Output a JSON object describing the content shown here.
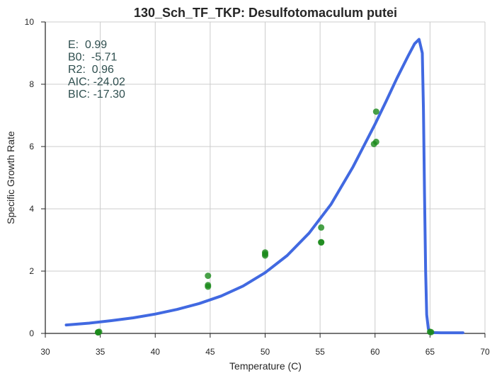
{
  "chart_data": {
    "type": "scatter",
    "title": "130_Sch_TF_TKP: Desulfotomaculum putei",
    "xlabel": "Temperature (C)",
    "ylabel": "Specific Growth Rate",
    "xlim": [
      30,
      70
    ],
    "ylim": [
      0,
      10
    ],
    "xticks": [
      "30",
      "35",
      "40",
      "45",
      "50",
      "55",
      "60",
      "65",
      "70"
    ],
    "yticks": [
      "0",
      "2",
      "4",
      "6",
      "8",
      "10"
    ],
    "grid": true,
    "annotations": [
      "E:  0.99",
      "B0:  -5.71",
      "R2:  0.96",
      "AIC: -24.02",
      "BIC: -17.30"
    ],
    "series": [
      {
        "kind": "scatter",
        "color": "#1a8a1a",
        "points": [
          [
            34.8,
            0.04
          ],
          [
            34.9,
            0.05
          ],
          [
            34.8,
            0.03
          ],
          [
            44.8,
            1.85
          ],
          [
            44.8,
            1.55
          ],
          [
            44.8,
            1.5
          ],
          [
            50.0,
            2.6
          ],
          [
            50.0,
            2.55
          ],
          [
            50.0,
            2.5
          ],
          [
            55.1,
            3.4
          ],
          [
            55.1,
            2.93
          ],
          [
            55.1,
            2.92
          ],
          [
            60.1,
            7.12
          ],
          [
            60.1,
            6.15
          ],
          [
            59.9,
            6.08
          ],
          [
            65.0,
            0.05
          ],
          [
            65.1,
            0.04
          ]
        ]
      },
      {
        "kind": "line",
        "color": "#4169e1",
        "points": [
          [
            31.9,
            0.27
          ],
          [
            34,
            0.33
          ],
          [
            36,
            0.41
          ],
          [
            38,
            0.5
          ],
          [
            40,
            0.62
          ],
          [
            42,
            0.77
          ],
          [
            44,
            0.96
          ],
          [
            46,
            1.2
          ],
          [
            48,
            1.52
          ],
          [
            50,
            1.95
          ],
          [
            52,
            2.5
          ],
          [
            54,
            3.22
          ],
          [
            56,
            4.15
          ],
          [
            58,
            5.35
          ],
          [
            60,
            6.72
          ],
          [
            61,
            7.45
          ],
          [
            62,
            8.2
          ],
          [
            63,
            8.9
          ],
          [
            63.6,
            9.3
          ],
          [
            64.0,
            9.44
          ],
          [
            64.3,
            9.0
          ],
          [
            64.4,
            7.2
          ],
          [
            64.5,
            4.5
          ],
          [
            64.6,
            2.0
          ],
          [
            64.7,
            0.6
          ],
          [
            64.85,
            0.15
          ],
          [
            65.0,
            0.03
          ],
          [
            66,
            0.02
          ],
          [
            68,
            0.02
          ]
        ]
      }
    ]
  }
}
